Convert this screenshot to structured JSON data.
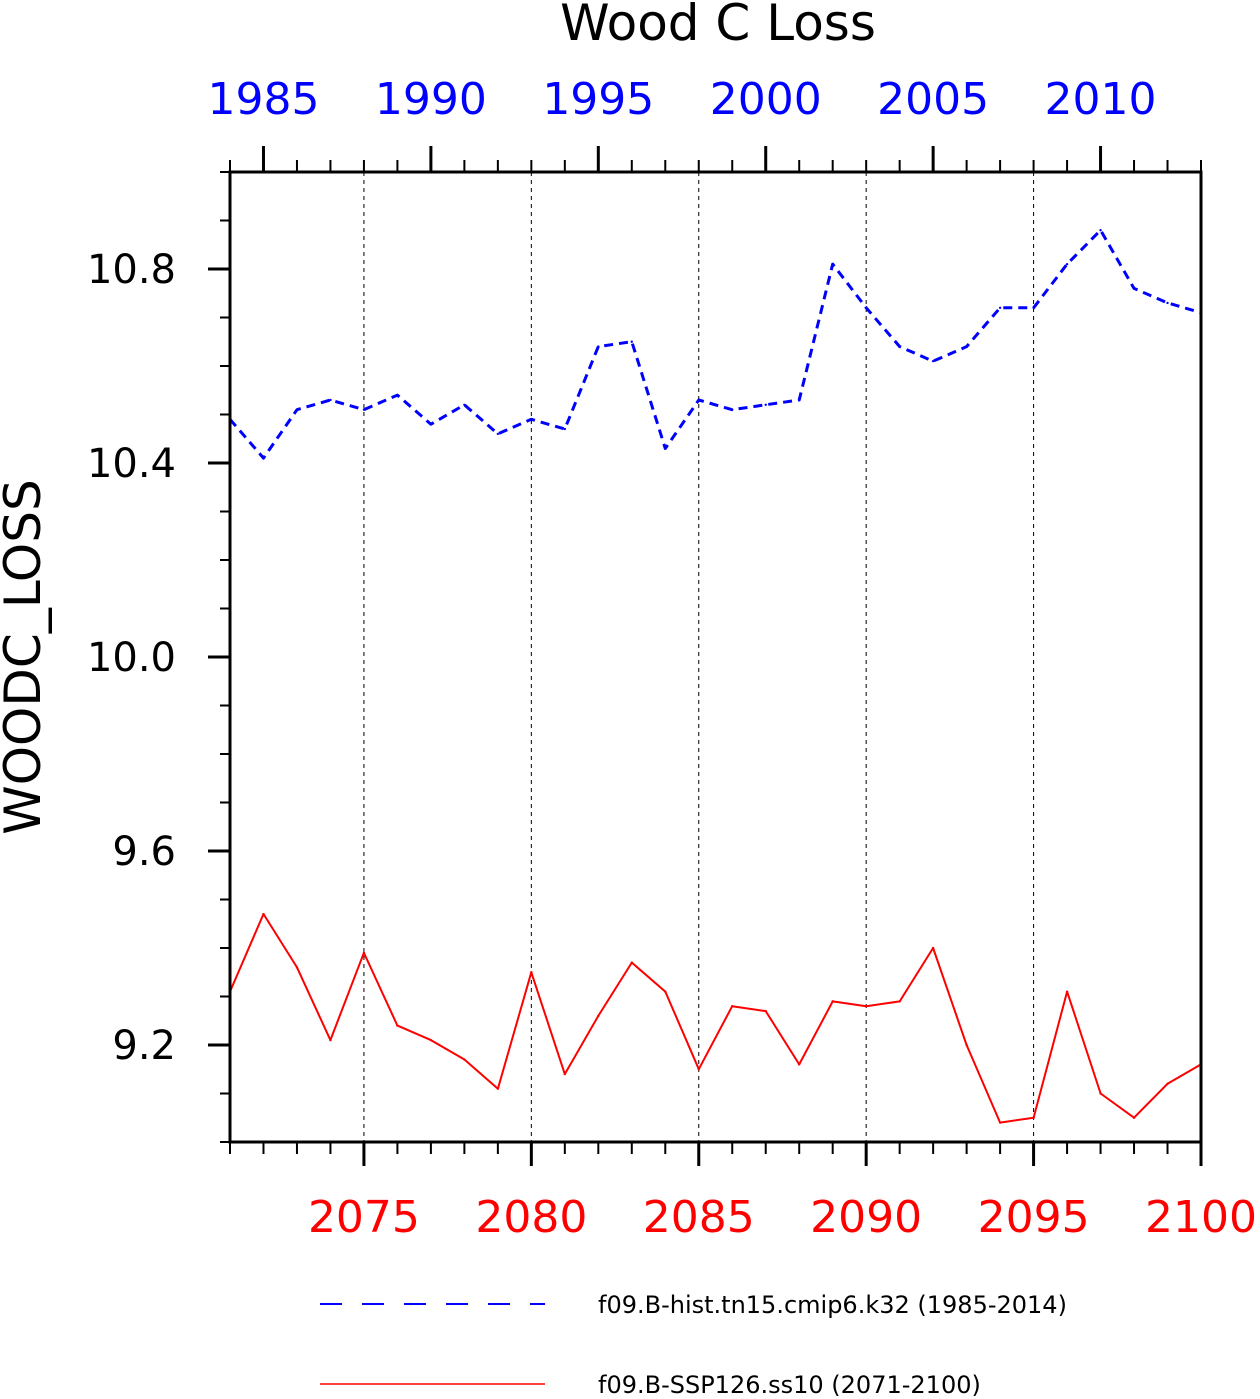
{
  "chart_data": {
    "type": "line",
    "title": "Wood C Loss",
    "ylabel": "WOODC_LOSS",
    "ylim": [
      9.0,
      11.0
    ],
    "y_ticks": [
      9.2,
      9.6,
      10.0,
      10.4,
      10.8
    ],
    "y_tick_labels": [
      "9.2",
      "9.6",
      "10.0",
      "10.4",
      "10.8"
    ],
    "grid": "vertical dashed lines at major bottom-axis ticks",
    "top_axis": {
      "range": [
        1984,
        2013
      ],
      "ticks": [
        1985,
        1990,
        1995,
        2000,
        2005,
        2010
      ],
      "tick_labels": [
        "1985",
        "1990",
        "1995",
        "2000",
        "2005",
        "2010"
      ],
      "color": "#0000ff"
    },
    "bottom_axis": {
      "range": [
        2071,
        2100
      ],
      "ticks": [
        2075,
        2080,
        2085,
        2090,
        2095,
        2100
      ],
      "tick_labels": [
        "2075",
        "2080",
        "2085",
        "2090",
        "2095",
        "2100"
      ],
      "color": "#ff0000"
    },
    "legend_position": "bottom",
    "series": [
      {
        "name": "f09.B-hist.tn15.cmip6.k32 (1985-2014)",
        "axis": "top",
        "color": "#0000ff",
        "style": "dashed",
        "x": [
          1984,
          1985,
          1986,
          1987,
          1988,
          1989,
          1990,
          1991,
          1992,
          1993,
          1994,
          1995,
          1996,
          1997,
          1998,
          1999,
          2000,
          2001,
          2002,
          2003,
          2004,
          2005,
          2006,
          2007,
          2008,
          2009,
          2010,
          2011,
          2012,
          2013
        ],
        "values": [
          10.49,
          10.41,
          10.51,
          10.53,
          10.51,
          10.54,
          10.48,
          10.52,
          10.46,
          10.49,
          10.47,
          10.64,
          10.65,
          10.43,
          10.53,
          10.51,
          10.52,
          10.53,
          10.81,
          10.72,
          10.64,
          10.61,
          10.64,
          10.72,
          10.72,
          10.81,
          10.88,
          10.76,
          10.73,
          10.71
        ]
      },
      {
        "name": "f09.B-SSP126.ss10 (2071-2100)",
        "axis": "bottom",
        "color": "#ff0000",
        "style": "solid",
        "x": [
          2071,
          2072,
          2073,
          2074,
          2075,
          2076,
          2077,
          2078,
          2079,
          2080,
          2081,
          2082,
          2083,
          2084,
          2085,
          2086,
          2087,
          2088,
          2089,
          2090,
          2091,
          2092,
          2093,
          2094,
          2095,
          2096,
          2097,
          2098,
          2099,
          2100
        ],
        "values": [
          9.31,
          9.47,
          9.36,
          9.21,
          9.39,
          9.24,
          9.21,
          9.17,
          9.11,
          9.35,
          9.14,
          9.26,
          9.37,
          9.31,
          9.15,
          9.28,
          9.27,
          9.16,
          9.29,
          9.28,
          9.29,
          9.4,
          9.2,
          9.04,
          9.05,
          9.31,
          9.1,
          9.05,
          9.12,
          9.16
        ]
      }
    ]
  }
}
